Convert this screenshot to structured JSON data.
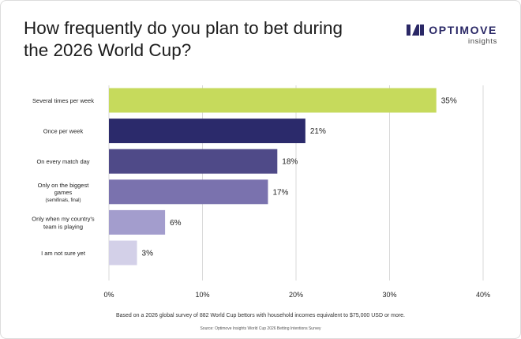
{
  "title": "How frequently do you plan to bet during the 2026 World Cup?",
  "brand": {
    "name": "OPTIMOVE",
    "sub": "insights"
  },
  "footnote": "Based on a 2026 global survey of 882 World Cup bettors with household incomes equivalent to $75,000 USD or more.",
  "source": "Source: Optimove Insights World Cup 2026 Betting Intentions Survey",
  "colors": {
    "brand": "#2a2866"
  },
  "chart_data": {
    "type": "bar",
    "orientation": "horizontal",
    "categories": [
      [
        "Several times per week"
      ],
      [
        "Once per week"
      ],
      [
        "On every match day"
      ],
      [
        "Only on the biggest",
        "games",
        "(semifinals, final)"
      ],
      [
        "Only when my country's",
        "team is playing"
      ],
      [
        "I am not sure yet"
      ]
    ],
    "values": [
      35,
      21,
      18,
      17,
      6,
      3
    ],
    "value_labels": [
      "35%",
      "21%",
      "18%",
      "17%",
      "6%",
      "3%"
    ],
    "colors": [
      "#c6da5c",
      "#2b2a6b",
      "#4f4a88",
      "#7a72ae",
      "#a39dcd",
      "#d3d0e8"
    ],
    "xlim": [
      0,
      40
    ],
    "xticks": [
      0,
      10,
      20,
      30,
      40
    ],
    "xtick_labels": [
      "0%",
      "10%",
      "20%",
      "30%",
      "40%"
    ],
    "grid": true
  }
}
